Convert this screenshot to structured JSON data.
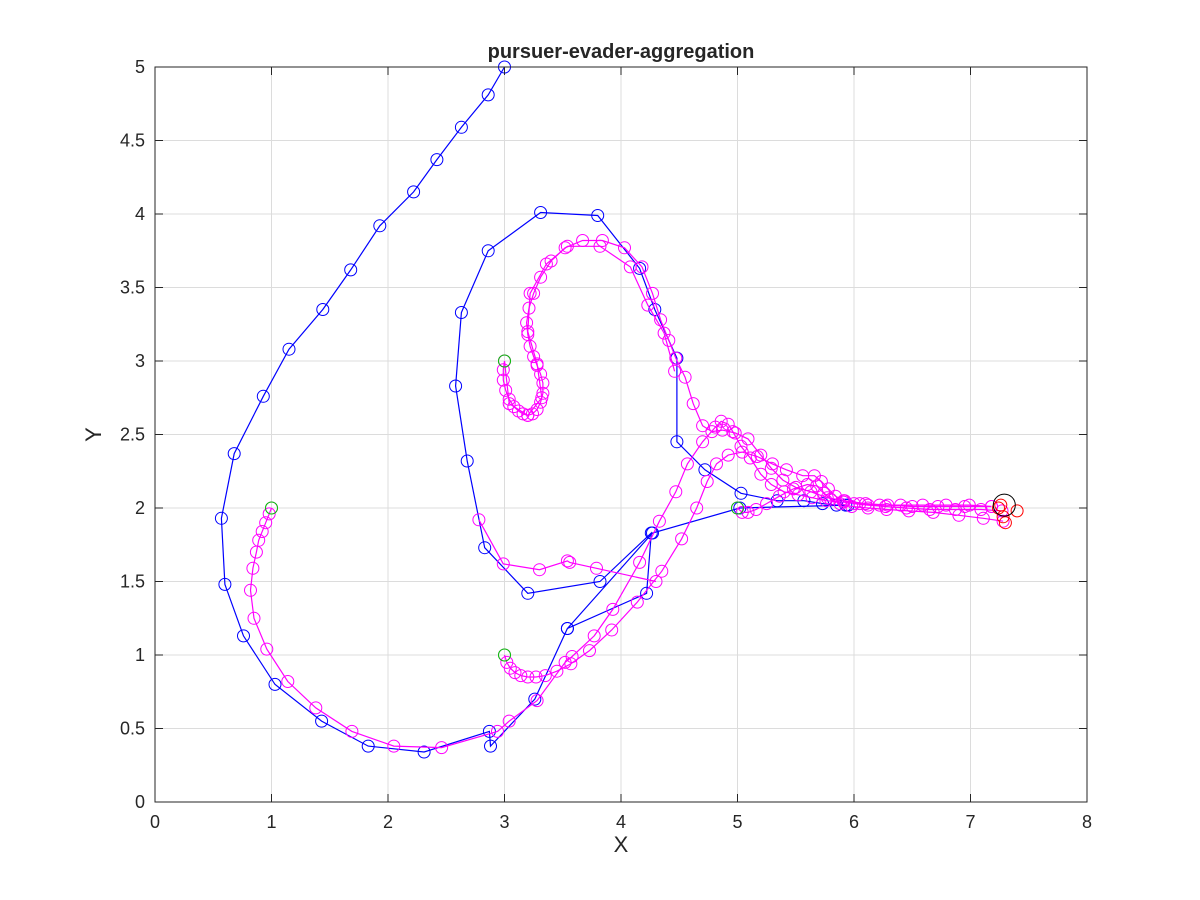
{
  "chart_data": {
    "type": "line",
    "title": "pursuer-evader-aggregation",
    "xlabel": "X",
    "ylabel": "Y",
    "xlim": [
      0,
      8
    ],
    "ylim": [
      0,
      5
    ],
    "grid": true,
    "marker": "circle",
    "xticks": [
      "0",
      "1",
      "2",
      "3",
      "4",
      "5",
      "6",
      "7",
      "8"
    ],
    "yticks": [
      "0",
      "0.5",
      "1",
      "1.5",
      "2",
      "2.5",
      "3",
      "3.5",
      "4",
      "4.5",
      "5"
    ],
    "series": [
      {
        "color": "#0000ff",
        "points": [
          [
            3.0,
            5.0
          ],
          [
            2.86,
            4.81
          ],
          [
            2.63,
            4.59
          ],
          [
            2.42,
            4.37
          ],
          [
            2.22,
            4.15
          ],
          [
            1.93,
            3.92
          ],
          [
            1.68,
            3.62
          ],
          [
            1.44,
            3.35
          ],
          [
            1.15,
            3.08
          ],
          [
            0.93,
            2.76
          ],
          [
            0.68,
            2.37
          ],
          [
            0.57,
            1.93
          ],
          [
            0.6,
            1.48
          ],
          [
            0.76,
            1.13
          ],
          [
            1.03,
            0.8
          ],
          [
            1.43,
            0.55
          ],
          [
            1.83,
            0.38
          ],
          [
            2.31,
            0.34
          ],
          [
            2.87,
            0.48
          ],
          [
            2.88,
            0.38
          ],
          [
            3.26,
            0.7
          ],
          [
            3.54,
            1.18
          ],
          [
            4.22,
            1.42
          ],
          [
            4.26,
            1.83
          ],
          [
            3.82,
            1.5
          ],
          [
            3.2,
            1.42
          ],
          [
            2.83,
            1.73
          ],
          [
            2.68,
            2.32
          ],
          [
            2.58,
            2.83
          ],
          [
            2.63,
            3.33
          ],
          [
            2.86,
            3.75
          ],
          [
            3.31,
            4.01
          ],
          [
            3.8,
            3.99
          ],
          [
            4.16,
            3.63
          ],
          [
            4.29,
            3.35
          ],
          [
            4.48,
            3.02
          ],
          [
            4.48,
            2.45
          ],
          [
            4.72,
            2.26
          ],
          [
            5.03,
            2.1
          ],
          [
            5.34,
            2.05
          ],
          [
            5.57,
            2.05
          ],
          [
            5.73,
            2.03
          ],
          [
            5.85,
            2.02
          ],
          [
            5.93,
            2.02
          ],
          [
            5.95,
            2.02
          ],
          [
            5.02,
            2.0
          ],
          [
            4.27,
            1.83
          ],
          [
            3.54,
            1.18
          ]
        ]
      },
      {
        "color": "#ff00ff",
        "points": [
          [
            1.0,
            2.0
          ],
          [
            0.98,
            1.96
          ],
          [
            0.95,
            1.9
          ],
          [
            0.92,
            1.84
          ],
          [
            0.89,
            1.78
          ],
          [
            0.87,
            1.7
          ],
          [
            0.84,
            1.59
          ],
          [
            0.82,
            1.44
          ],
          [
            0.85,
            1.25
          ],
          [
            0.96,
            1.04
          ],
          [
            1.14,
            0.82
          ],
          [
            1.38,
            0.64
          ],
          [
            1.69,
            0.48
          ],
          [
            2.05,
            0.38
          ],
          [
            2.46,
            0.37
          ],
          [
            2.94,
            0.48
          ],
          [
            3.04,
            0.55
          ],
          [
            3.28,
            0.69
          ],
          [
            3.52,
            0.95
          ],
          [
            3.58,
            0.99
          ],
          [
            3.77,
            1.13
          ],
          [
            3.93,
            1.31
          ],
          [
            4.16,
            1.63
          ],
          [
            4.33,
            1.91
          ],
          [
            4.47,
            2.11
          ],
          [
            4.57,
            2.3
          ],
          [
            4.7,
            2.45
          ],
          [
            4.81,
            2.55
          ],
          [
            4.86,
            2.59
          ],
          [
            4.92,
            2.57
          ],
          [
            4.96,
            2.52
          ],
          [
            5.03,
            2.42
          ],
          [
            5.11,
            2.34
          ],
          [
            5.2,
            2.23
          ],
          [
            5.29,
            2.16
          ],
          [
            5.4,
            2.11
          ],
          [
            5.52,
            2.09
          ],
          [
            5.64,
            2.07
          ],
          [
            5.76,
            2.05
          ],
          [
            5.91,
            2.04
          ],
          [
            6.05,
            2.03
          ],
          [
            6.22,
            2.02
          ],
          [
            6.4,
            2.02
          ],
          [
            6.59,
            2.02
          ],
          [
            6.79,
            2.02
          ],
          [
            6.99,
            2.02
          ],
          [
            7.18,
            2.01
          ]
        ]
      },
      {
        "color": "#ff00ff",
        "points": [
          [
            3.0,
            3.0
          ],
          [
            2.99,
            2.94
          ],
          [
            2.99,
            2.87
          ],
          [
            3.01,
            2.8
          ],
          [
            3.04,
            2.74
          ],
          [
            3.08,
            2.69
          ],
          [
            3.12,
            2.66
          ],
          [
            3.16,
            2.64
          ],
          [
            3.2,
            2.63
          ],
          [
            3.24,
            2.64
          ],
          [
            3.28,
            2.67
          ],
          [
            3.31,
            2.72
          ],
          [
            3.33,
            2.78
          ],
          [
            3.33,
            2.85
          ],
          [
            3.31,
            2.91
          ],
          [
            3.28,
            2.97
          ],
          [
            3.25,
            3.03
          ],
          [
            3.22,
            3.1
          ],
          [
            3.2,
            3.18
          ],
          [
            3.19,
            3.26
          ],
          [
            3.21,
            3.36
          ],
          [
            3.25,
            3.46
          ],
          [
            3.31,
            3.57
          ],
          [
            3.4,
            3.68
          ],
          [
            3.52,
            3.77
          ],
          [
            3.67,
            3.82
          ],
          [
            3.84,
            3.82
          ],
          [
            4.03,
            3.77
          ],
          [
            4.18,
            3.64
          ],
          [
            4.27,
            3.46
          ],
          [
            4.34,
            3.28
          ],
          [
            4.41,
            3.14
          ],
          [
            4.47,
            3.02
          ],
          [
            4.55,
            2.89
          ],
          [
            4.62,
            2.71
          ],
          [
            4.7,
            2.56
          ],
          [
            4.78,
            2.52
          ],
          [
            4.87,
            2.53
          ],
          [
            4.98,
            2.51
          ],
          [
            5.09,
            2.47
          ],
          [
            5.2,
            2.36
          ],
          [
            5.29,
            2.27
          ],
          [
            5.39,
            2.19
          ],
          [
            5.5,
            2.14
          ],
          [
            5.63,
            2.11
          ],
          [
            5.77,
            2.07
          ],
          [
            5.92,
            2.05
          ],
          [
            6.1,
            2.03
          ],
          [
            6.29,
            2.02
          ],
          [
            6.5,
            2.01
          ],
          [
            6.72,
            2.01
          ],
          [
            6.95,
            2.01
          ],
          [
            7.18,
            2.01
          ]
        ]
      },
      {
        "color": "#ff00ff",
        "points": [
          [
            3.0,
            1.0
          ],
          [
            3.02,
            0.95
          ],
          [
            3.05,
            0.91
          ],
          [
            3.09,
            0.88
          ],
          [
            3.14,
            0.86
          ],
          [
            3.2,
            0.85
          ],
          [
            3.27,
            0.85
          ],
          [
            3.35,
            0.86
          ],
          [
            3.45,
            0.89
          ],
          [
            3.57,
            0.94
          ],
          [
            3.73,
            1.03
          ],
          [
            3.92,
            1.17
          ],
          [
            4.14,
            1.36
          ],
          [
            4.35,
            1.57
          ],
          [
            4.52,
            1.79
          ],
          [
            4.65,
            2.0
          ],
          [
            4.74,
            2.18
          ],
          [
            4.82,
            2.3
          ],
          [
            4.92,
            2.36
          ],
          [
            5.04,
            2.38
          ],
          [
            5.17,
            2.35
          ],
          [
            5.3,
            2.3
          ],
          [
            5.42,
            2.26
          ],
          [
            5.56,
            2.22
          ],
          [
            5.66,
            2.22
          ],
          [
            5.72,
            2.18
          ],
          [
            5.78,
            2.13
          ],
          [
            5.84,
            2.08
          ],
          [
            5.91,
            2.05
          ],
          [
            6.0,
            2.03
          ],
          [
            6.12,
            2.02
          ],
          [
            6.27,
            2.01
          ],
          [
            6.45,
            2.0
          ],
          [
            6.65,
            1.99
          ],
          [
            6.87,
            1.99
          ],
          [
            7.09,
            1.99
          ],
          [
            7.27,
            1.98
          ]
        ]
      },
      {
        "color": "#ff00ff",
        "points": [
          [
            5.0,
            2.0
          ],
          [
            5.04,
            1.97
          ],
          [
            5.09,
            1.97
          ],
          [
            5.16,
            1.99
          ],
          [
            5.25,
            2.03
          ],
          [
            5.36,
            2.08
          ],
          [
            5.48,
            2.13
          ],
          [
            5.6,
            2.16
          ],
          [
            5.68,
            2.15
          ],
          [
            5.74,
            2.1
          ],
          [
            5.8,
            2.06
          ],
          [
            5.88,
            2.03
          ],
          [
            5.98,
            2.01
          ],
          [
            6.12,
            2.0
          ],
          [
            6.28,
            1.99
          ],
          [
            6.47,
            1.98
          ],
          [
            6.68,
            1.97
          ],
          [
            6.9,
            1.95
          ],
          [
            7.11,
            1.93
          ],
          [
            7.28,
            1.91
          ]
        ]
      },
      {
        "color": "#ff00ff",
        "points": [
          [
            3.0,
            3.0
          ],
          [
            3.04,
            2.71
          ],
          [
            3.2,
            2.63
          ],
          [
            3.32,
            2.75
          ],
          [
            3.28,
            2.98
          ],
          [
            3.2,
            3.2
          ],
          [
            3.22,
            3.46
          ],
          [
            3.36,
            3.66
          ],
          [
            3.54,
            3.78
          ],
          [
            3.82,
            3.78
          ],
          [
            4.08,
            3.64
          ],
          [
            4.23,
            3.38
          ],
          [
            4.37,
            3.19
          ],
          [
            4.46,
            2.93
          ]
        ]
      },
      {
        "color": "#ff00ff",
        "points": [
          [
            2.78,
            1.92
          ],
          [
            2.99,
            1.62
          ],
          [
            3.3,
            1.58
          ],
          [
            3.54,
            1.64
          ],
          [
            3.56,
            1.63
          ],
          [
            3.79,
            1.59
          ],
          [
            4.3,
            1.5
          ]
        ]
      },
      {
        "color": "#00cc00",
        "marker_only": true,
        "points": [
          [
            1.0,
            2.0
          ],
          [
            3.0,
            3.0
          ],
          [
            3.0,
            1.0
          ],
          [
            5.0,
            2.0
          ]
        ]
      },
      {
        "color": "#ff0000",
        "marker_only": true,
        "points": [
          [
            7.26,
            2.02
          ],
          [
            7.28,
            1.94
          ],
          [
            7.3,
            1.9
          ],
          [
            7.4,
            1.98
          ],
          [
            7.24,
            2.0
          ]
        ]
      },
      {
        "color": "#000000",
        "marker_only": true,
        "big": true,
        "points": [
          [
            7.29,
            2.02
          ]
        ]
      }
    ]
  }
}
